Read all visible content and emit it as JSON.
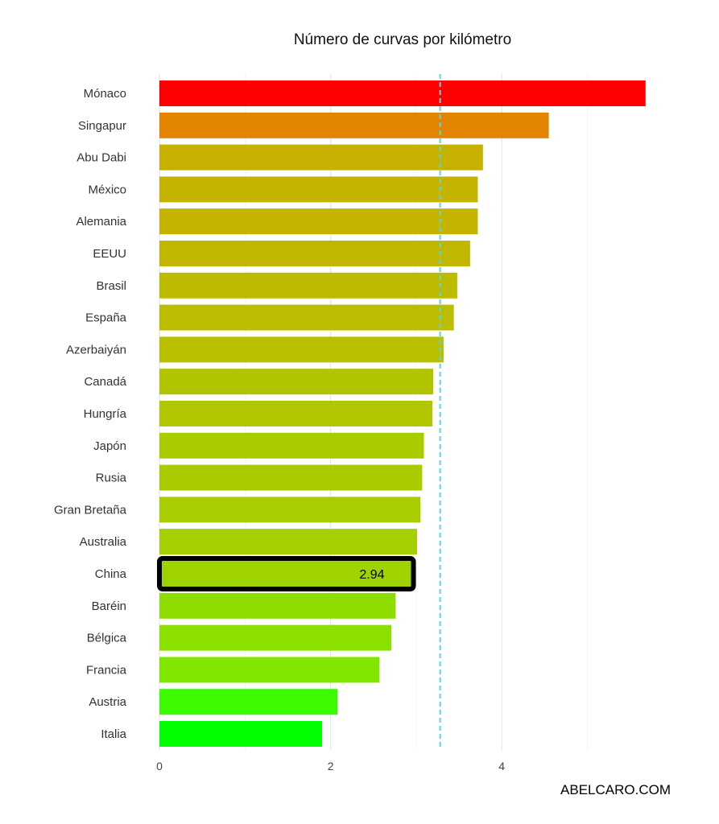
{
  "chart_data": {
    "type": "bar",
    "orientation": "horizontal",
    "title": "Número de curvas por kilómetro",
    "xlabel": "",
    "ylabel": "",
    "categories": [
      "Mónaco",
      "Singapur",
      "Abu Dabi",
      "México",
      "Alemania",
      "EEUU",
      "Brasil",
      "España",
      "Azerbaiyán",
      "Canadá",
      "Hungría",
      "Japón",
      "Rusia",
      "Gran Bretaña",
      "Australia",
      "China",
      "Baréin",
      "Bélgica",
      "Francia",
      "Austria",
      "Italia"
    ],
    "values": [
      5.68,
      4.55,
      3.78,
      3.72,
      3.72,
      3.63,
      3.48,
      3.44,
      3.32,
      3.2,
      3.19,
      3.09,
      3.07,
      3.05,
      3.01,
      2.94,
      2.76,
      2.71,
      2.57,
      2.08,
      1.9
    ],
    "colors": [
      "#ff0000",
      "#e38500",
      "#c8b000",
      "#c6b300",
      "#c6b300",
      "#c2b700",
      "#bdbb00",
      "#bcbc00",
      "#b8c000",
      "#b2c400",
      "#b1c500",
      "#aacb00",
      "#a9cc00",
      "#a8cd00",
      "#a5cf00",
      "#9ed300",
      "#8fdd00",
      "#8be000",
      "#80e600",
      "#3cfa00",
      "#00ff00"
    ],
    "highlight": {
      "category": "China",
      "label": "2.94"
    },
    "mean_line": 3.28,
    "xlim": [
      0,
      5.85
    ],
    "x_ticks": [
      0,
      2,
      4
    ],
    "grid": true
  },
  "footer": {
    "credit": "ABELCARO.COM"
  }
}
